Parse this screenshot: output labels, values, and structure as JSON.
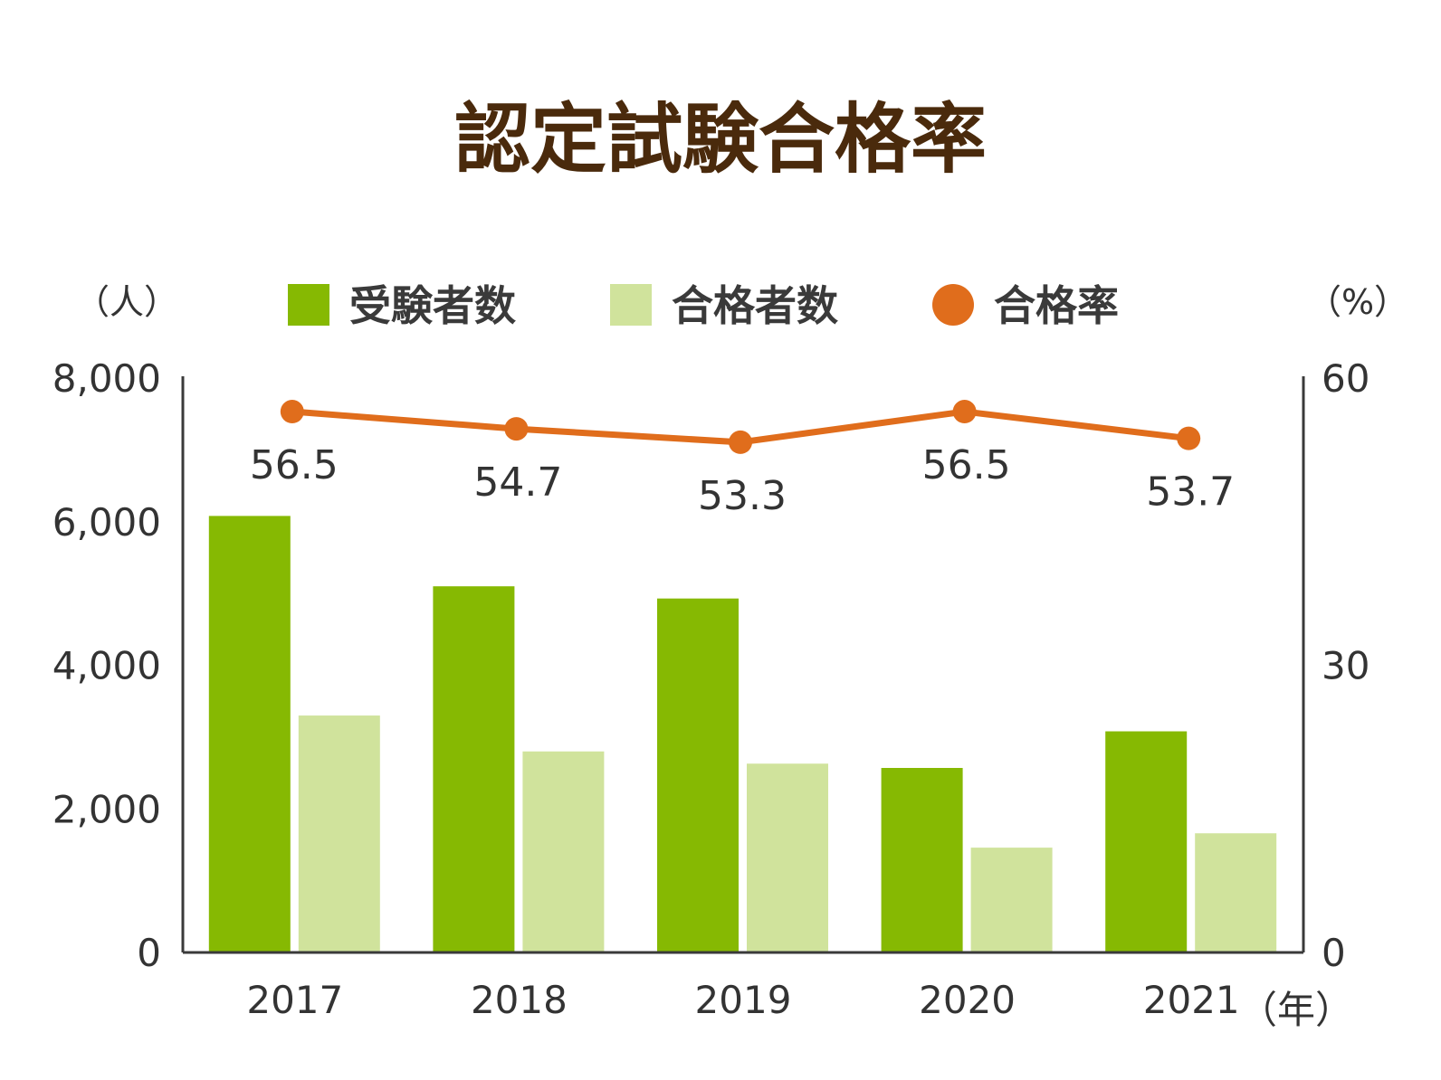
{
  "chart_data": {
    "type": "bar",
    "title": "認定試験合格率",
    "categories": [
      "2017",
      "2018",
      "2019",
      "2020",
      "2021"
    ],
    "series": [
      {
        "name": "受験者数",
        "kind": "bar",
        "axis": "left",
        "color": "#86b902",
        "values": [
          6080,
          5100,
          4930,
          2570,
          3080
        ]
      },
      {
        "name": "合格者数",
        "kind": "bar",
        "axis": "left",
        "color": "#d0e39c",
        "values": [
          3300,
          2800,
          2630,
          1460,
          1660
        ]
      },
      {
        "name": "合格率",
        "kind": "line",
        "axis": "right",
        "color": "#e06d1c",
        "values": [
          56.5,
          54.7,
          53.3,
          56.5,
          53.7
        ],
        "labels": [
          "56.5",
          "54.7",
          "53.3",
          "56.5",
          "53.7"
        ]
      }
    ],
    "y_left": {
      "unit": "（人）",
      "range": [
        0,
        8000
      ],
      "ticks": [
        0,
        2000,
        4000,
        6000,
        8000
      ],
      "tick_labels": [
        "0",
        "2,000",
        "4,000",
        "6,000",
        "8,000"
      ]
    },
    "y_right": {
      "unit": "（%）",
      "range": [
        0,
        60
      ],
      "ticks": [
        0,
        30,
        60
      ],
      "tick_labels": [
        "0",
        "30",
        "60"
      ]
    },
    "x_unit": "（年）",
    "legend_position": "top",
    "grid": false
  },
  "colors": {
    "title": "#4a2a0c",
    "axis": "#3a3a3a",
    "text": "#333333"
  }
}
